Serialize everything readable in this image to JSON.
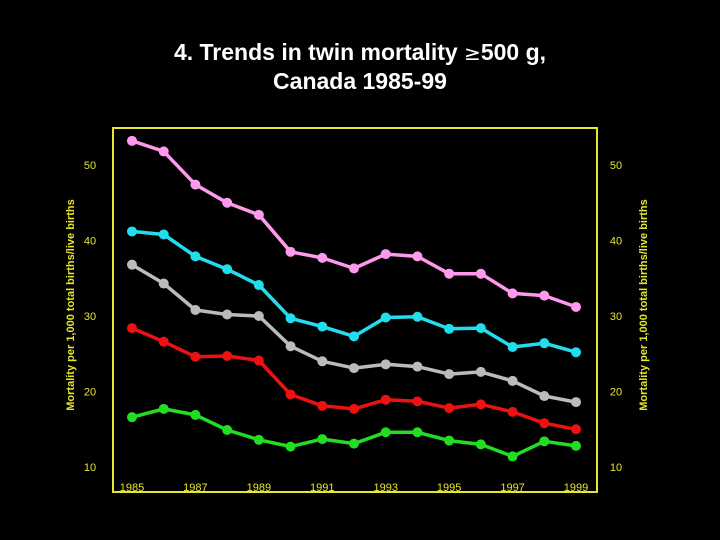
{
  "title": {
    "line1_prefix": "4. Trends in twin mortality ",
    "symbol": "≥",
    "line1_suffix": "500 g,",
    "line2": "Canada 1985-99"
  },
  "colors": {
    "background": "#000000",
    "frame": "#e6e62c",
    "axis_text": "#e6e62c",
    "series": [
      "#ff99ee",
      "#22ddee",
      "#bbbbbb",
      "#ee1111",
      "#22dd22"
    ]
  },
  "chart_data": {
    "type": "line",
    "title": "4. Trends in twin mortality ≥500 g, Canada 1985-99",
    "x": [
      1985,
      1986,
      1987,
      1988,
      1989,
      1990,
      1991,
      1992,
      1993,
      1994,
      1995,
      1996,
      1997,
      1998,
      1999
    ],
    "x_ticks": [
      "1985",
      "1987",
      "1989",
      "1991",
      "1993",
      "1995",
      "1997",
      "1999"
    ],
    "y_ticks": [
      "10",
      "20",
      "30",
      "40",
      "50"
    ],
    "ylim": [
      10,
      50
    ],
    "xlim": [
      1985,
      1999
    ],
    "ylabel_left": "Mortality per 1,000 total births/live births",
    "ylabel_right": "Mortality per 1,000 total births/live births",
    "grid": false,
    "series": [
      {
        "color": "#ff99ee",
        "values": [
          53.2,
          51.8,
          47.4,
          45.0,
          43.4,
          38.5,
          37.7,
          36.3,
          38.2,
          37.9,
          35.6,
          35.6,
          33.0,
          32.7,
          31.2
        ]
      },
      {
        "color": "#22ddee",
        "values": [
          41.2,
          40.8,
          37.9,
          36.2,
          34.1,
          29.7,
          28.6,
          27.3,
          29.8,
          29.9,
          28.3,
          28.4,
          25.9,
          26.4,
          25.2
        ]
      },
      {
        "color": "#bbbbbb",
        "values": [
          36.8,
          34.3,
          30.8,
          30.2,
          30.0,
          26.0,
          24.0,
          23.1,
          23.6,
          23.3,
          22.3,
          22.6,
          21.4,
          19.4,
          18.6
        ]
      },
      {
        "color": "#ee1111",
        "values": [
          28.4,
          26.6,
          24.6,
          24.7,
          24.1,
          19.6,
          18.1,
          17.7,
          18.9,
          18.7,
          17.8,
          18.3,
          17.3,
          15.8,
          15.0
        ]
      },
      {
        "color": "#22dd22",
        "values": [
          16.6,
          17.7,
          16.9,
          14.9,
          13.6,
          12.7,
          13.7,
          13.1,
          14.6,
          14.6,
          13.5,
          13.0,
          11.4,
          13.4,
          12.8
        ]
      }
    ]
  }
}
